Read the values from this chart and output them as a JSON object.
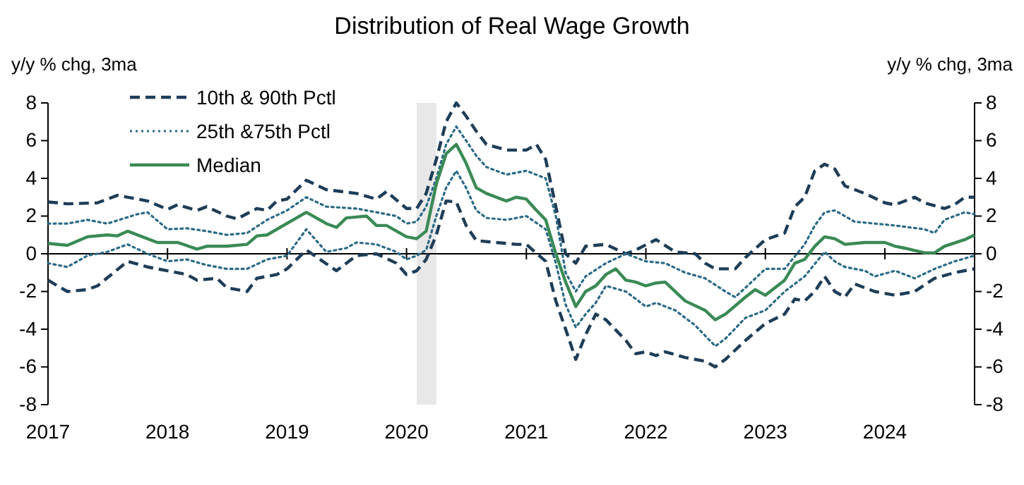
{
  "chart_data": {
    "type": "line",
    "title": "Distribution of Real Wage Growth",
    "ylabel": "y/y % chg, 3ma",
    "y2label": "y/y % chg, 3ma",
    "xlim": [
      "2017-01",
      "2024-10"
    ],
    "xticks": [
      "2017",
      "2018",
      "2019",
      "2020",
      "2021",
      "2022",
      "2023",
      "2024"
    ],
    "ylim": [
      -8,
      8
    ],
    "yticks": [
      -8,
      -6,
      -4,
      -2,
      0,
      2,
      4,
      6,
      8
    ],
    "y2lim": [
      -8,
      8
    ],
    "y2ticks": [
      -8,
      -6,
      -4,
      -2,
      0,
      2,
      4,
      6,
      8
    ],
    "legend": "top left",
    "bands": [
      {
        "axis": "x",
        "from": "2020-02",
        "to": "2020-04",
        "color": "#e8e8e8"
      }
    ],
    "series": [
      {
        "name": "10th & 90th Pctl",
        "color": "#1f3d57",
        "line_style": "dashed",
        "x": [
          "2017-01",
          "2017-03",
          "2017-06",
          "2017-08",
          "2017-11",
          "2018-01",
          "2018-02",
          "2018-04",
          "2018-05",
          "2018-07",
          "2018-08",
          "2018-10",
          "2018-11",
          "2018-12",
          "2019-01",
          "2019-03",
          "2019-05",
          "2019-08",
          "2019-10",
          "2019-11",
          "2020-01",
          "2020-02",
          "2020-03",
          "2020-04",
          "2020-05",
          "2020-06",
          "2020-07",
          "2020-08",
          "2020-09",
          "2020-11",
          "2021-01",
          "2021-02",
          "2021-03",
          "2021-04",
          "2021-05",
          "2021-06",
          "2021-07",
          "2021-09",
          "2021-11",
          "2021-12",
          "2022-02",
          "2022-04",
          "2022-06",
          "2022-07",
          "2022-08",
          "2022-10",
          "2022-11",
          "2023-01",
          "2023-03",
          "2023-04",
          "2023-05",
          "2023-06",
          "2023-07",
          "2023-08",
          "2023-09",
          "2023-11",
          "2024-01",
          "2024-02",
          "2024-04",
          "2024-05",
          "2024-07",
          "2024-08",
          "2024-09",
          "2024-10"
        ],
        "values": [
          2.75,
          2.65,
          2.7,
          3.1,
          2.8,
          2.35,
          2.6,
          2.3,
          2.5,
          2.0,
          1.85,
          2.4,
          2.3,
          2.8,
          2.9,
          3.9,
          3.4,
          3.2,
          2.9,
          3.3,
          2.4,
          2.4,
          3.2,
          5.0,
          7.0,
          8.0,
          7.3,
          6.5,
          5.8,
          5.5,
          5.5,
          5.8,
          5.0,
          2.5,
          0,
          -0.5,
          0.4,
          0.5,
          0,
          0.2,
          0.75,
          0.1,
          0,
          -0.5,
          -0.8,
          -0.8,
          -0.2,
          0.75,
          1.1,
          2.5,
          3.0,
          4.4,
          4.75,
          4.5,
          3.6,
          3.2,
          2.7,
          2.6,
          3.0,
          2.7,
          2.4,
          2.6,
          3.0,
          3.0
        ]
      },
      {
        "color": "#2b6a86",
        "line_style": "dotted",
        "name": "25th &75th Pctl",
        "x": [
          "2017-01",
          "2017-03",
          "2017-05",
          "2017-07",
          "2017-10",
          "2017-11",
          "2018-01",
          "2018-03",
          "2018-05",
          "2018-07",
          "2018-09",
          "2018-11",
          "2019-01",
          "2019-03",
          "2019-05",
          "2019-08",
          "2019-10",
          "2019-12",
          "2020-01",
          "2020-02",
          "2020-03",
          "2020-04",
          "2020-05",
          "2020-06",
          "2020-07",
          "2020-08",
          "2020-09",
          "2020-11",
          "2021-01",
          "2021-03",
          "2021-04",
          "2021-05",
          "2021-06",
          "2021-07",
          "2021-09",
          "2021-11",
          "2022-01",
          "2022-03",
          "2022-05",
          "2022-07",
          "2022-09",
          "2022-10",
          "2022-11",
          "2023-01",
          "2023-03",
          "2023-05",
          "2023-06",
          "2023-07",
          "2023-08",
          "2023-10",
          "2023-12",
          "2024-02",
          "2024-05",
          "2024-06",
          "2024-07",
          "2024-09",
          "2024-10"
        ],
        "values": [
          1.6,
          1.6,
          1.8,
          1.6,
          2.1,
          2.2,
          1.3,
          1.35,
          1.2,
          1.0,
          1.1,
          1.8,
          2.3,
          3.0,
          2.5,
          2.4,
          2.2,
          2.0,
          1.6,
          1.7,
          2.5,
          4.0,
          5.8,
          6.75,
          6.0,
          5.2,
          4.6,
          4.2,
          4.4,
          4.0,
          2.0,
          -1.0,
          -2.0,
          -1.2,
          -0.5,
          0.0,
          -0.4,
          -0.5,
          -1.0,
          -1.3,
          -2.0,
          -2.3,
          -1.8,
          -0.8,
          -0.8,
          0.5,
          1.5,
          2.2,
          2.3,
          1.7,
          1.6,
          1.5,
          1.3,
          1.1,
          1.8,
          2.2,
          2.1
        ]
      },
      {
        "name": "Median",
        "color": "#3a8a55",
        "line_style": "solid",
        "x": [
          "2017-01",
          "2017-03",
          "2017-05",
          "2017-07",
          "2017-08",
          "2017-09",
          "2017-12",
          "2018-02",
          "2018-04",
          "2018-05",
          "2018-07",
          "2018-09",
          "2018-10",
          "2018-11",
          "2019-03",
          "2019-05",
          "2019-06",
          "2019-07",
          "2019-09",
          "2019-10",
          "2019-11",
          "2020-01",
          "2020-02",
          "2020-03",
          "2020-04",
          "2020-05",
          "2020-06",
          "2020-07",
          "2020-08",
          "2020-09",
          "2020-10",
          "2020-11",
          "2020-12",
          "2021-01",
          "2021-02",
          "2021-03",
          "2021-04",
          "2021-05",
          "2021-06",
          "2021-07",
          "2021-08",
          "2021-09",
          "2021-10",
          "2021-11",
          "2021-12",
          "2022-01",
          "2022-02",
          "2022-03",
          "2022-05",
          "2022-07",
          "2022-08",
          "2022-09",
          "2022-11",
          "2022-12",
          "2023-01",
          "2023-03",
          "2023-04",
          "2023-05",
          "2023-06",
          "2023-07",
          "2023-08",
          "2023-09",
          "2023-11",
          "2024-01",
          "2024-02",
          "2024-03",
          "2024-05",
          "2024-06",
          "2024-07",
          "2024-09",
          "2024-10"
        ],
        "values": [
          0.55,
          0.45,
          0.9,
          1.0,
          0.95,
          1.2,
          0.6,
          0.6,
          0.25,
          0.4,
          0.4,
          0.5,
          0.95,
          1.0,
          2.2,
          1.6,
          1.4,
          1.9,
          2.0,
          1.5,
          1.5,
          0.9,
          0.8,
          1.2,
          3.7,
          5.3,
          5.8,
          4.8,
          3.5,
          3.2,
          3.0,
          2.8,
          3.0,
          2.9,
          2.3,
          1.8,
          0,
          -1.5,
          -2.8,
          -2.0,
          -1.7,
          -1.1,
          -0.8,
          -1.4,
          -1.5,
          -1.7,
          -1.55,
          -1.5,
          -2.5,
          -3.0,
          -3.5,
          -3.2,
          -2.3,
          -1.9,
          -2.2,
          -1.4,
          -0.5,
          -0.3,
          0.4,
          0.9,
          0.8,
          0.5,
          0.6,
          0.6,
          0.4,
          0.3,
          0.05,
          0.05,
          0.4,
          0.75,
          1.0
        ]
      },
      {
        "color": "#2b6a86",
        "line_style": "dotted",
        "x": [
          "2017-01",
          "2017-03",
          "2017-05",
          "2017-07",
          "2017-09",
          "2017-11",
          "2018-01",
          "2018-03",
          "2018-05",
          "2018-07",
          "2018-09",
          "2018-11",
          "2019-01",
          "2019-03",
          "2019-05",
          "2019-07",
          "2019-08",
          "2019-10",
          "2019-12",
          "2020-01",
          "2020-02",
          "2020-03",
          "2020-04",
          "2020-05",
          "2020-06",
          "2020-07",
          "2020-08",
          "2020-09",
          "2020-11",
          "2021-01",
          "2021-03",
          "2021-04",
          "2021-05",
          "2021-06",
          "2021-07",
          "2021-08",
          "2021-09",
          "2021-11",
          "2022-01",
          "2022-02",
          "2022-04",
          "2022-06",
          "2022-08",
          "2022-09",
          "2022-11",
          "2023-01",
          "2023-03",
          "2023-05",
          "2023-07",
          "2023-08",
          "2023-09",
          "2023-11",
          "2023-12",
          "2024-02",
          "2024-04",
          "2024-06",
          "2024-08",
          "2024-10"
        ],
        "values": [
          -0.5,
          -0.7,
          -0.1,
          0.1,
          0.5,
          0.0,
          -0.4,
          -0.3,
          -0.6,
          -0.8,
          -0.8,
          -0.3,
          -0.1,
          1.3,
          0.1,
          0.3,
          0.6,
          0.5,
          0.1,
          -0.3,
          -0.1,
          0.2,
          2.0,
          3.5,
          4.4,
          3.5,
          2.3,
          1.9,
          1.8,
          2.0,
          1.3,
          -0.5,
          -2.7,
          -3.9,
          -3.2,
          -2.6,
          -1.7,
          -2.0,
          -2.8,
          -2.6,
          -3.0,
          -3.8,
          -4.9,
          -4.5,
          -3.4,
          -3.0,
          -2.0,
          -1.2,
          0.1,
          -0.4,
          -0.7,
          -0.9,
          -1.2,
          -0.9,
          -1.3,
          -0.8,
          -0.4,
          -0.1
        ]
      },
      {
        "color": "#1f3d57",
        "line_style": "dashed",
        "x": [
          "2017-01",
          "2017-03",
          "2017-05",
          "2017-06",
          "2017-09",
          "2017-11",
          "2018-01",
          "2018-03",
          "2018-04",
          "2018-06",
          "2018-07",
          "2018-09",
          "2018-10",
          "2018-12",
          "2019-01",
          "2019-03",
          "2019-06",
          "2019-08",
          "2019-10",
          "2019-12",
          "2020-01",
          "2020-02",
          "2020-03",
          "2020-04",
          "2020-05",
          "2020-06",
          "2020-07",
          "2020-08",
          "2020-10",
          "2020-12",
          "2021-01",
          "2021-03",
          "2021-04",
          "2021-05",
          "2021-06",
          "2021-07",
          "2021-08",
          "2021-09",
          "2021-11",
          "2021-12",
          "2022-01",
          "2022-02",
          "2022-03",
          "2022-05",
          "2022-07",
          "2022-08",
          "2022-09",
          "2022-11",
          "2023-01",
          "2023-03",
          "2023-04",
          "2023-05",
          "2023-06",
          "2023-07",
          "2023-08",
          "2023-09",
          "2023-10",
          "2023-12",
          "2024-02",
          "2024-04",
          "2024-06",
          "2024-08",
          "2024-10"
        ],
        "values": [
          -1.4,
          -2.0,
          -1.9,
          -1.7,
          -0.4,
          -0.7,
          -0.9,
          -1.1,
          -1.4,
          -1.3,
          -1.8,
          -2.0,
          -1.3,
          -1.1,
          -0.8,
          0.2,
          -0.9,
          -0.1,
          0.0,
          -0.5,
          -1.1,
          -0.9,
          -0.3,
          1.0,
          2.8,
          2.75,
          1.5,
          0.7,
          0.6,
          0.5,
          0.5,
          -0.4,
          -2.5,
          -4.0,
          -5.6,
          -4.3,
          -3.2,
          -3.5,
          -4.6,
          -5.3,
          -5.2,
          -5.4,
          -5.2,
          -5.5,
          -5.7,
          -6.0,
          -5.6,
          -4.6,
          -3.7,
          -3.2,
          -2.4,
          -2.5,
          -2.0,
          -1.2,
          -2.0,
          -2.3,
          -1.6,
          -2.0,
          -2.2,
          -2.0,
          -1.3,
          -1.0,
          -0.8
        ]
      }
    ]
  }
}
